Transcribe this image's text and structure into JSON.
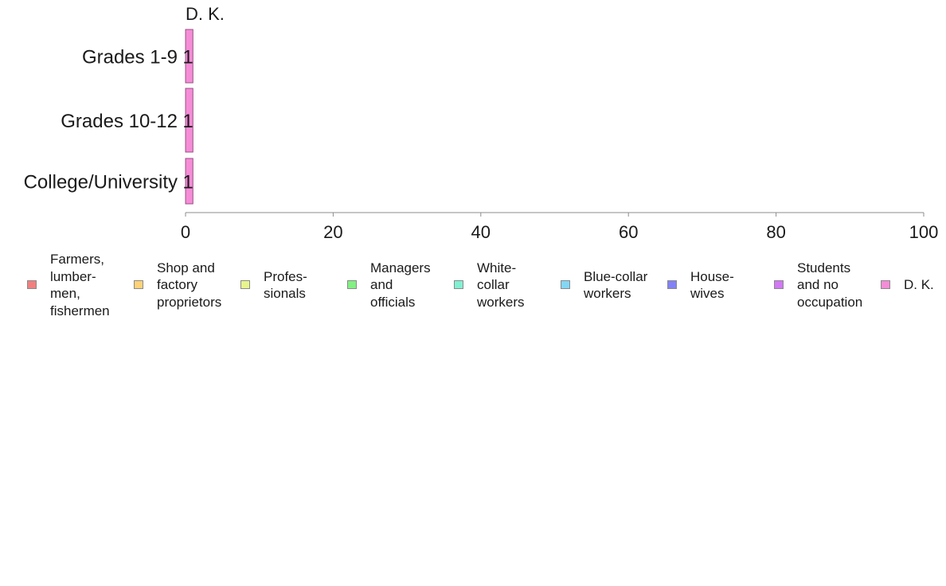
{
  "chart_data": {
    "type": "bar",
    "orientation": "horizontal",
    "stacked": true,
    "title": "D. K.",
    "categories": [
      "Grades 1-9",
      "Grades 10-12",
      "College/University"
    ],
    "series": [
      {
        "name": "Farmers,\nlumber-\nmen,\nfishermen",
        "color": "#f08080",
        "values": [
          0,
          0,
          0
        ]
      },
      {
        "name": "Shop and\nfactory\nproprietors",
        "color": "#ffd278",
        "values": [
          0,
          0,
          0
        ]
      },
      {
        "name": "Profes-\nsionals",
        "color": "#e8f58c",
        "values": [
          0,
          0,
          0
        ]
      },
      {
        "name": "Managers\nand\nofficials",
        "color": "#82f082",
        "values": [
          0,
          0,
          0
        ]
      },
      {
        "name": "White-\ncollar\nworkers",
        "color": "#82f0d2",
        "values": [
          0,
          0,
          0
        ]
      },
      {
        "name": "Blue-collar\nworkers",
        "color": "#82d7f5",
        "values": [
          0,
          0,
          0
        ]
      },
      {
        "name": "House-\nwives",
        "color": "#8282f5",
        "values": [
          0,
          0,
          0
        ]
      },
      {
        "name": "Students\nand no\noccupation",
        "color": "#d278f5",
        "values": [
          0,
          0,
          0
        ]
      },
      {
        "name": "D. K.",
        "color": "#f58cd7",
        "values": [
          1,
          1,
          1
        ]
      }
    ],
    "data_labels": [
      "1",
      "1",
      "1"
    ],
    "xlim": [
      0,
      100
    ],
    "x_ticks": [
      0,
      20,
      40,
      60,
      80,
      100
    ],
    "xlabel": "",
    "ylabel": "",
    "grid": false,
    "legend_position": "bottom"
  }
}
